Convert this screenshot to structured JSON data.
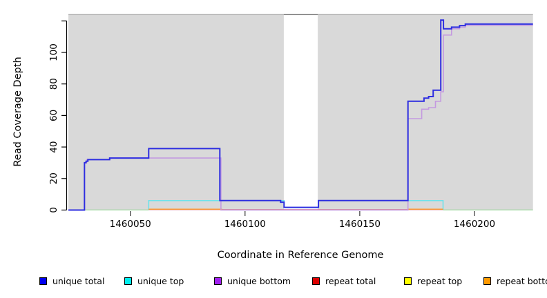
{
  "figure": {
    "x_axis_title": "Coordinate in Reference Genome",
    "y_axis_title": "Read Coverage Depth"
  },
  "chart_data": {
    "type": "line",
    "subtype": "step-coverage-plot",
    "title": "",
    "xlabel": "Coordinate in Reference Genome",
    "ylabel": "Read Coverage Depth",
    "xlim": [
      1460023,
      1460225.5
    ],
    "ylim": [
      0,
      124.5
    ],
    "grid": "off",
    "panel_background": "#d9d9d9",
    "x_ticks": {
      "values": [
        1460050,
        1460100,
        1460150,
        1460200
      ],
      "labels": [
        "1460050",
        "1460100",
        "1460150",
        "1460200"
      ]
    },
    "y_ticks": {
      "values": [
        0,
        20,
        40,
        60,
        80,
        100,
        120
      ],
      "labels": [
        "0",
        "20",
        "40",
        "60",
        "80",
        "100",
        ""
      ]
    },
    "masked_region": {
      "x_from": 1460116.9,
      "x_to": 1460131.7,
      "fill": "#ffffff",
      "top_border": "#8c8c8c"
    },
    "series": [
      {
        "name": "baseline-blend-left",
        "color": "#9cd69c",
        "width": 1.3,
        "points": [
          [
            1460030,
            0.05
          ]
        ],
        "end": 1460058
      },
      {
        "name": "baseline-blend-right",
        "color": "#9cd69c",
        "width": 1.3,
        "points": [
          [
            1460186.3,
            0.05
          ]
        ],
        "end": 1460225.5
      },
      {
        "name": "unique top",
        "color": "#6fe2ea",
        "width": 1.6,
        "points": [
          [
            1460058,
            0.05
          ],
          [
            1460058,
            6
          ],
          [
            1460117,
            1.6
          ],
          [
            1460132,
            6
          ],
          [
            1460186.3,
            0.05
          ]
        ],
        "end": 1460186.3
      },
      {
        "name": "repeat total",
        "color": "#d4687c",
        "width": 1.2,
        "points": [
          [
            1460058,
            0.25
          ]
        ],
        "end": 1460186.3
      },
      {
        "name": "repeat bottom-a",
        "color": "#ff9e2c",
        "width": 1.4,
        "points": [
          [
            1460058,
            0.55
          ]
        ],
        "end": 1460090
      },
      {
        "name": "repeat bottom-b",
        "color": "#ff9e2c",
        "width": 1.4,
        "points": [
          [
            1460171,
            0.55
          ]
        ],
        "end": 1460186.3
      },
      {
        "name": "unique bottom",
        "color": "#c49ae0",
        "width": 1.6,
        "points": [
          [
            1460023,
            0
          ],
          [
            1460030,
            30
          ],
          [
            1460031,
            32
          ],
          [
            1460041,
            33
          ],
          [
            1460089.5,
            0
          ],
          [
            1460171,
            58
          ],
          [
            1460177,
            64
          ],
          [
            1460180,
            65
          ],
          [
            1460183,
            69
          ],
          [
            1460185.3,
            75
          ],
          [
            1460186.5,
            111
          ],
          [
            1460190,
            115
          ],
          [
            1460193.5,
            116
          ],
          [
            1460196,
            117
          ]
        ],
        "end": 1460225.5
      },
      {
        "name": "unique total",
        "color": "#2e2ee0",
        "width": 2,
        "points": [
          [
            1460023,
            0
          ],
          [
            1460030,
            30
          ],
          [
            1460030.7,
            31
          ],
          [
            1460031.5,
            32
          ],
          [
            1460041,
            33
          ],
          [
            1460058,
            39
          ],
          [
            1460089,
            6
          ],
          [
            1460115.5,
            5
          ],
          [
            1460117,
            1.7
          ],
          [
            1460132,
            6
          ],
          [
            1460171,
            69
          ],
          [
            1460178,
            71
          ],
          [
            1460180,
            72
          ],
          [
            1460182,
            76
          ],
          [
            1460185.3,
            120.5
          ],
          [
            1460186.5,
            115
          ],
          [
            1460190,
            116
          ],
          [
            1460193.5,
            117
          ],
          [
            1460196,
            118
          ]
        ],
        "end": 1460225.5
      }
    ],
    "legend": {
      "position": "bottom",
      "entries": [
        {
          "label": "unique total",
          "color": "#0000ee"
        },
        {
          "label": "unique top",
          "color": "#00eeee"
        },
        {
          "label": "unique bottom",
          "color": "#a020f0"
        },
        {
          "label": "repeat total",
          "color": "#dd0000"
        },
        {
          "label": "repeat top",
          "color": "#ffff00"
        },
        {
          "label": "repeat bottom",
          "color": "#ff9900"
        }
      ]
    }
  }
}
